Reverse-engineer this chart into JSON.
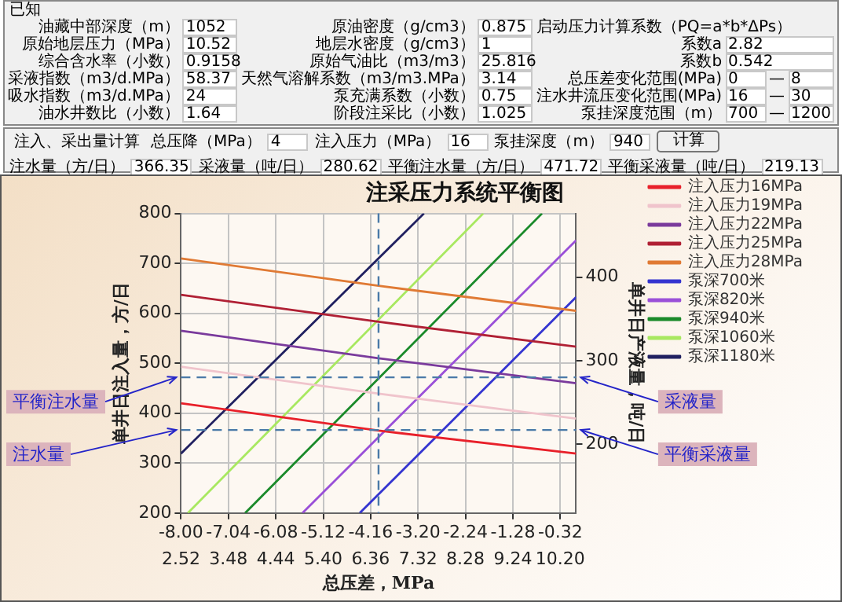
{
  "chart_data": [
    {
      "type": "other",
      "title": "已知",
      "annotations": [
        "油藏中部深度（m）",
        "1052",
        "原油密度（g/cm3）",
        "0.875",
        "启动压力计算系数（PQ=a*b*ΔPs）",
        "原始地层压力（MPa）",
        "10.52",
        "地层水密度（g/cm3）",
        "1",
        "系数a",
        "2.82",
        "综合含水率（小数）",
        "0.9158",
        "原始气油比（m3/m3）",
        "25.816",
        "系数b",
        "0.542",
        "采液指数（m3/d.MPa）",
        "58.37",
        "天然气溶解系数（m3/m3.MPa）",
        "3.14",
        "总压差变化范围(MPa)",
        "0",
        "—",
        "8",
        "吸水指数（m3/d.MPa）",
        "24",
        "泵充满系数（小数）",
        "0.75",
        "注水井流压变化范围(MPa)",
        "16",
        "—",
        "30",
        "油水井数比（小数）",
        "1.64",
        "阶段注采比（小数）",
        "1.025",
        "泵挂深度范围（m）",
        "700",
        "—",
        "1200"
      ]
    },
    {
      "type": "other",
      "title": "注入、采出量计算",
      "annotations": [
        "总压降（MPa）",
        "4",
        "注入压力（MPa）",
        "16",
        "泵挂深度（m）",
        "940",
        "计算",
        "注水量（方/日）",
        "366.35",
        "采液量（吨/日）",
        "280.62",
        "平衡注水量（方/日）",
        "471.72",
        "平衡采液量（吨/日）",
        "219.13"
      ]
    },
    {
      "type": "line",
      "title": "注采压力系统平衡图",
      "xlabel": "总压差，MPa",
      "ylabel": "单井日注入量，方/日",
      "y2label": "单井日产液量，吨/日",
      "xlim": [
        -8,
        0
      ],
      "xticks": [
        {
          "value": -8,
          "label": "-8.00"
        },
        {
          "value": -7.04,
          "label": "-7.04"
        },
        {
          "value": -6.08,
          "label": "-6.08"
        },
        {
          "value": -5.12,
          "label": "-5.12"
        },
        {
          "value": -4.16,
          "label": "-4.16"
        },
        {
          "value": -3.2,
          "label": "-3.20"
        },
        {
          "value": -2.24,
          "label": "-2.24"
        },
        {
          "value": -1.28,
          "label": "-1.28"
        },
        {
          "value": -0.32,
          "label": "-0.32"
        }
      ],
      "x2lim": [
        2.52,
        10.52
      ],
      "x2ticks": [
        2.52,
        3.48,
        4.44,
        {
          "value": 5.4,
          "label": "5.40"
        },
        6.36,
        7.32,
        8.28,
        9.24,
        {
          "value": 10.2,
          "label": "10.20"
        }
      ],
      "ylim": [
        200,
        800
      ],
      "yticks": [
        200,
        300,
        400,
        500,
        600,
        700,
        800
      ],
      "y2lim": [
        118,
        476
      ],
      "y2ticks": [
        200,
        300,
        400
      ],
      "grid": true,
      "legend": "right",
      "series": [
        {
          "name": "注入压力16MPa",
          "color": "#e8202a",
          "x": [
            -8,
            -4,
            0
          ],
          "values": [
            420,
            365,
            319
          ]
        },
        {
          "name": "注入压力19MPa",
          "color": "#f0c4cc",
          "x": [
            -8,
            -4,
            0
          ],
          "values": [
            493,
            439,
            389
          ]
        },
        {
          "name": "注入压力22MPa",
          "color": "#7a3a9c",
          "x": [
            -8,
            -4,
            0
          ],
          "values": [
            565,
            510,
            460
          ]
        },
        {
          "name": "注入压力25MPa",
          "color": "#b02034",
          "x": [
            -8,
            -4,
            0
          ],
          "values": [
            637,
            583,
            533
          ]
        },
        {
          "name": "注入压力28MPa",
          "color": "#e07a34",
          "x": [
            -8,
            -4,
            0
          ],
          "values": [
            710,
            655,
            605
          ]
        },
        {
          "name": "泵深700米",
          "color": "#3434d0",
          "axis": "y2",
          "x": [
            -4.38,
            0
          ],
          "values": [
            118,
            376
          ]
        },
        {
          "name": "泵深820米",
          "color": "#9a50d8",
          "axis": "y2",
          "x": [
            -5.54,
            0
          ],
          "values": [
            118,
            444
          ]
        },
        {
          "name": "泵深940米",
          "color": "#1a8a2a",
          "axis": "y2",
          "x": [
            -6.7,
            -0.69
          ],
          "values": [
            118,
            476
          ]
        },
        {
          "name": "泵深1060米",
          "color": "#a8e860",
          "axis": "y2",
          "x": [
            -7.86,
            -1.88
          ],
          "values": [
            118,
            476
          ]
        },
        {
          "name": "泵深1180米",
          "color": "#202060",
          "axis": "y2",
          "x": [
            -8,
            -3.08
          ],
          "values": [
            189,
            476
          ]
        }
      ],
      "ref_lines": [
        {
          "axis": "x",
          "value": -4
        },
        {
          "axis": "y",
          "value": 471.72,
          "label": "平衡注水量"
        },
        {
          "axis": "y",
          "value": 366.35,
          "label": "注水量"
        }
      ],
      "annotations": [
        {
          "text": "采液量",
          "x": 0,
          "y": 471.72
        },
        {
          "text": "平衡采液量",
          "x": 0,
          "y": 366.35
        }
      ]
    }
  ]
}
